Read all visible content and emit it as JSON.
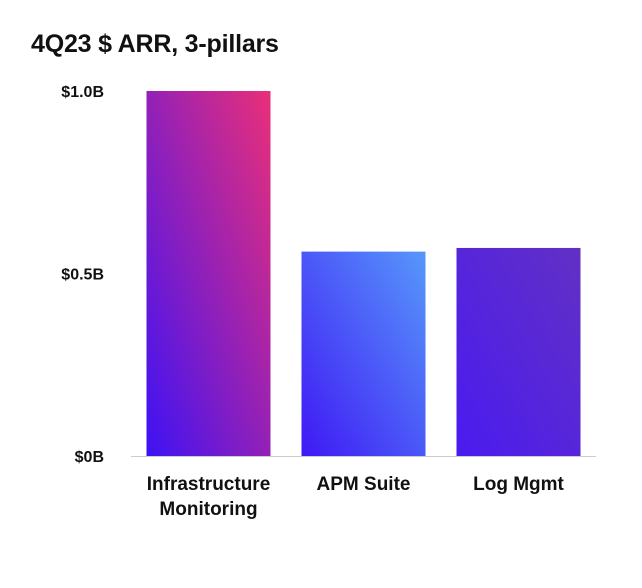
{
  "chart_data": {
    "type": "bar",
    "title": "4Q23 $ ARR, 3-pillars",
    "xlabel": "",
    "ylabel": "",
    "categories": [
      [
        "Infrastructure",
        "Monitoring"
      ],
      [
        "APM Suite"
      ],
      [
        "Log Mgmt"
      ]
    ],
    "values": [
      1.0,
      0.56,
      0.57
    ],
    "ylim": [
      0,
      1.0
    ],
    "yticks": [
      {
        "value": 0,
        "label": "$0B"
      },
      {
        "value": 0.5,
        "label": "$0.5B"
      },
      {
        "value": 1.0,
        "label": "$1.0B"
      }
    ],
    "grid": false,
    "bar_gradients": [
      {
        "from": "#3d12f5",
        "to": "#ea2f79"
      },
      {
        "from": "#3f18f4",
        "to": "#5797fb"
      },
      {
        "from": "#4a1bf0",
        "to": "#6230c4"
      }
    ],
    "axis_color": "#cccccc"
  }
}
